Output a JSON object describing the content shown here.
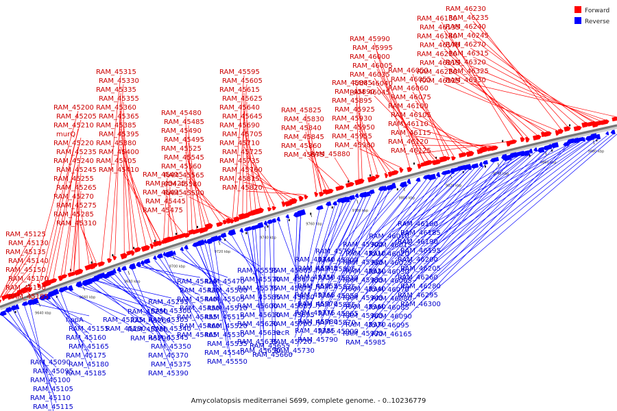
{
  "legend": {
    "forward": "Forward",
    "reverse": "Reverse"
  },
  "colors": {
    "forward": "#ff0000",
    "reverse": "#0000ff",
    "axis": "#777777"
  },
  "caption": "Amycolatopsis mediterranei S699, complete genome. - 0..10236779",
  "scale_ticks": [
    "9640 kbp",
    "9660 kbp",
    "9680 kbp",
    "9700 kbp",
    "9720 kbp",
    "9740 kbp",
    "9760 kbp",
    "9780 kbp",
    "9800 kbp",
    "9820 kbp",
    "9840 kbp",
    "9860 kbp",
    "9880 kbp"
  ],
  "forward_labels": [
    "RAM_45125",
    "RAM_45130",
    "RAM_45135",
    "RAM_45140",
    "RAM_45150",
    "RAM_45170",
    "RAM_45190",
    "RAM_45195",
    "RAM_45200",
    "RAM_45205",
    "RAM_45210",
    "murQ",
    "RAM_45220",
    "RAM_45235",
    "RAM_45240",
    "RAM_45245",
    "RAM_45255",
    "RAM_45265",
    "RAM_45270",
    "RAM_45275",
    "RAM_45285",
    "RAM_45310",
    "RAM_45315",
    "RAM_45330",
    "RAM_45335",
    "RAM_45355",
    "RAM_45360",
    "RAM_45365",
    "RAM_45385",
    "RAM_45395",
    "RAM_45380",
    "RAM_45400",
    "RAM_45405",
    "RAM_45410",
    "RAM_45415",
    "RAM_45425",
    "RAM_45435",
    "RAM_45445",
    "RAM_45475",
    "RAM_45480",
    "RAM_45485",
    "RAM_45490",
    "RAM_45495",
    "RAM_45525",
    "RAM_45545",
    "RAM_45560",
    "RAM_45565",
    "RAM_45580",
    "RAM_45590",
    "RAM_45595",
    "RAM_45605",
    "RAM_45615",
    "RAM_45625",
    "RAM_45640",
    "RAM_45645",
    "RAM_45690",
    "RAM_45705",
    "RAM_45710",
    "RAM_45725",
    "RAM_45735",
    "RAM_45760",
    "RAM_45815",
    "RAM_45820",
    "RAM_45825",
    "RAM_45830",
    "RAM_45840",
    "RAM_45845",
    "RAM_45860",
    "RAM_45875",
    "RAM_45880",
    "RAM_45885",
    "RAM_45890",
    "RAM_45895",
    "RAM_45925",
    "RAM_45930",
    "RAM_45950",
    "RAM_45955",
    "RAM_45980",
    "RAM_45990",
    "RAM_45995",
    "RAM_46000",
    "RAM_46005",
    "RAM_46035",
    "RAM_46040",
    "RAM_46045",
    "RAM_46050",
    "RAM_46055",
    "RAM_46060",
    "RAM_46075",
    "RAM_46100",
    "RAM_46105",
    "RAM_46110",
    "RAM_46115",
    "RAM_46120",
    "RAM_46125",
    "RAM_46130",
    "RAM_46135",
    "RAM_46140",
    "RAM_46170",
    "RAM_46210",
    "RAM_46215",
    "RAM_46220",
    "RAM_46225",
    "RAM_46230",
    "RAM_46235",
    "RAM_46240",
    "RAM_46245",
    "RAM_46270",
    "RAM_46315",
    "RAM_46320",
    "RAM_46325",
    "RAM_46330"
  ],
  "reverse_labels": [
    "RAM_45090",
    "RAM_45095",
    "RAM_45100",
    "RAM_45105",
    "RAM_45110",
    "RAM_45115",
    "RAM_45120",
    "hppA",
    "RAM_45155",
    "RAM_45160",
    "RAM_45165",
    "RAM_45175",
    "RAM_45180",
    "RAM_45185",
    "RAM_45225",
    "RAM_45230",
    "RAM_45250",
    "RAM_45260",
    "RAM_45280",
    "RAM_45290",
    "RAM_45295",
    "RAM_45300",
    "RAM_45305",
    "RAM_45340",
    "RAM_45345",
    "RAM_45350",
    "RAM_45370",
    "RAM_45375",
    "RAM_45390",
    "RAM_45420",
    "RAM_45430",
    "RAM_45440",
    "RAM_45450",
    "RAM_45455",
    "RAM_45460",
    "RAM_45465",
    "RAM_45470",
    "RAM_45500",
    "RAM_45505",
    "RAM_45510",
    "RAM_45515",
    "RAM_45520",
    "RAM_45530",
    "RAM_45535",
    "RAM_45540",
    "RAM_45550",
    "RAM_45555",
    "RAM_45570",
    "RAM_45575",
    "RAM_45585",
    "RAM_45600",
    "RAM_45610",
    "RAM_45620",
    "RAM_45630",
    "RAM_45635",
    "RAM_45650",
    "RAM_45655",
    "RAM_45660",
    "RAM_45665",
    "RAM_45670",
    "RAM_45675",
    "RAM_45680",
    "RAM_45685",
    "RAM_45695",
    "RAM_45700",
    "recR",
    "RAM_45720",
    "RAM_45730",
    "RAM_45740",
    "RAM_45745",
    "RAM_45750",
    "RAM_45755",
    "RAM_45765",
    "RAM_45770",
    "RAM_45775",
    "RAM_45780",
    "RAM_45785",
    "RAM_45790",
    "RAM_45795",
    "RAM_45800",
    "RAM_45805",
    "RAM_45810",
    "RAM_45835",
    "RAM_45850",
    "RAM_45855",
    "RAM_45865",
    "RAM_45870",
    "RAM_45900",
    "RAM_45905",
    "RAM_45910",
    "RAM_45915",
    "RAM_45920",
    "RAM_45935",
    "RAM_45940",
    "RAM_45945",
    "RAM_45960",
    "RAM_45965",
    "RAM_45970",
    "RAM_45975",
    "RAM_45985",
    "RAM_46010",
    "RAM_46015",
    "RAM_46020",
    "RAM_46025",
    "RAM_46030",
    "RAM_46065",
    "RAM_46070",
    "RAM_46080",
    "RAM_46085",
    "RAM_46090",
    "RAM_46095",
    "RAM_46165",
    "RAM_46180",
    "RAM_46185",
    "RAM_46190",
    "RAM_46195",
    "RAM_46200",
    "RAM_46205",
    "RAM_46260",
    "RAM_46280",
    "RAM_46295",
    "RAM_46300"
  ]
}
